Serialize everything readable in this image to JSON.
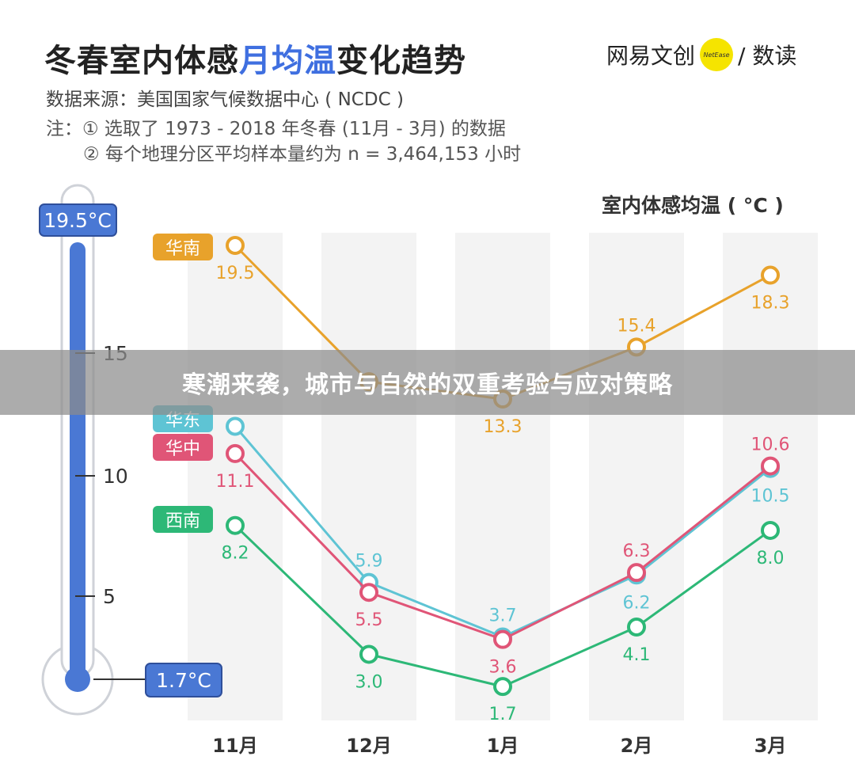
{
  "header": {
    "title_part1": "冬春室内体感",
    "title_accent": "月均温",
    "title_part2": "变化趋势",
    "source": "数据来源：美国国家气候数据中心 ( NCDC )",
    "note_line1": "注：① 选取了 1973 - 2018 年冬春 (11月 - 3月) 的数据",
    "note_line2": "② 每个地理分区平均样本量约为 n = 3,464,153 小时"
  },
  "logo": {
    "left_text": "网易文创",
    "dot_text": "NetEase",
    "right_text": "/ 数读"
  },
  "thermometer": {
    "max_label": "19.5°C",
    "min_label": "1.7°C",
    "ticks": [
      "15",
      "10",
      "5"
    ]
  },
  "overlay": {
    "headline": "寒潮来袭，城市与自然的双重考验与应对策略"
  },
  "colors": {
    "华南": "#e8a22b",
    "华东": "#5ec4d4",
    "华中": "#e05577",
    "西南": "#2db877",
    "thermometer_fill": "#4a78d4",
    "column_band": "#f3f3f3"
  },
  "chart_data": {
    "type": "line",
    "unit_label": "室内体感均温 ( °C )",
    "categories": [
      "11月",
      "12月",
      "1月",
      "2月",
      "3月"
    ],
    "ylim": [
      0,
      21
    ],
    "series": [
      {
        "name": "华南",
        "values": [
          19.5,
          14.0,
          13.3,
          15.4,
          18.3
        ],
        "labels": [
          "19.5",
          "",
          "13.3",
          "15.4",
          "18.3"
        ],
        "color": "#e8a22b"
      },
      {
        "name": "华东",
        "values": [
          12.2,
          5.9,
          3.7,
          6.2,
          10.5
        ],
        "labels": [
          "",
          "5.9",
          "3.7",
          "6.2",
          "10.5"
        ],
        "color": "#5ec4d4"
      },
      {
        "name": "华中",
        "values": [
          11.1,
          5.5,
          3.6,
          6.3,
          10.6
        ],
        "labels": [
          "11.1",
          "5.5",
          "3.6",
          "6.3",
          "10.6"
        ],
        "color": "#e05577"
      },
      {
        "name": "西南",
        "values": [
          8.2,
          3.0,
          1.7,
          4.1,
          8.0
        ],
        "labels": [
          "8.2",
          "3.0",
          "1.7",
          "4.1",
          "8.0"
        ],
        "color": "#2db877"
      }
    ]
  }
}
